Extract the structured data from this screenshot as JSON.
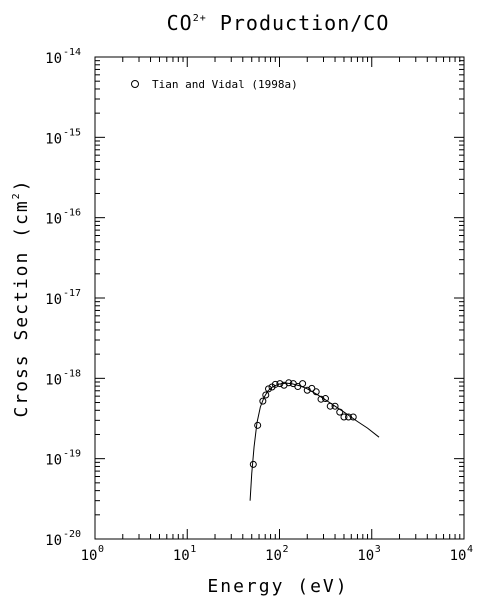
{
  "chart_data": {
    "type": "scatter",
    "title": {
      "base": "CO",
      "sup": "2+",
      "rest": " Production/CO"
    },
    "xlabel": "Energy (eV)",
    "ylabel": {
      "base": "Cross Section (cm",
      "sup": "2",
      "rest": ")"
    },
    "xscale": "log",
    "yscale": "log",
    "xlim": [
      1,
      10000
    ],
    "ylim": [
      1e-20,
      1e-14
    ],
    "x_ticks": [
      {
        "base": "10",
        "exp": "0",
        "value": 1
      },
      {
        "base": "10",
        "exp": "1",
        "value": 10
      },
      {
        "base": "10",
        "exp": "2",
        "value": 100
      },
      {
        "base": "10",
        "exp": "3",
        "value": 1000
      },
      {
        "base": "10",
        "exp": "4",
        "value": 10000
      }
    ],
    "y_ticks": [
      {
        "base": "10",
        "exp": "-20",
        "value": 1e-20
      },
      {
        "base": "10",
        "exp": "-19",
        "value": 1e-19
      },
      {
        "base": "10",
        "exp": "-18",
        "value": 1e-18
      },
      {
        "base": "10",
        "exp": "-17",
        "value": 1e-17
      },
      {
        "base": "10",
        "exp": "-16",
        "value": 1e-16
      },
      {
        "base": "10",
        "exp": "-15",
        "value": 1e-15
      },
      {
        "base": "10",
        "exp": "-14",
        "value": 1e-14
      }
    ],
    "legend": {
      "position": "top-left",
      "entries": [
        {
          "label": "Tian and Vidal (1998a)",
          "marker": "circle"
        }
      ]
    },
    "series": [
      {
        "name": "Tian and Vidal (1998a)",
        "kind": "points",
        "marker": "open-circle",
        "x": [
          52,
          58,
          66,
          71,
          76,
          83,
          90,
          101,
          112,
          126,
          141,
          158,
          178,
          200,
          224,
          250,
          282,
          315,
          355,
          400,
          450,
          500,
          560,
          630
        ],
        "y": [
          8.5e-20,
          2.6e-19,
          5.2e-19,
          6.2e-19,
          7.4e-19,
          7.8e-19,
          8.4e-19,
          8.6e-19,
          8.2e-19,
          8.8e-19,
          8.6e-19,
          7.9e-19,
          8.6e-19,
          7.1e-19,
          7.5e-19,
          6.8e-19,
          5.5e-19,
          5.6e-19,
          4.5e-19,
          4.5e-19,
          3.8e-19,
          3.3e-19,
          3.3e-19,
          3.3e-19
        ]
      },
      {
        "name": "",
        "kind": "line",
        "x": [
          48,
          50,
          53,
          57,
          62,
          68,
          75,
          85,
          100,
          120,
          140,
          170,
          200,
          250,
          300,
          400,
          500,
          700,
          900,
          1200
        ],
        "y": [
          3e-20,
          6.5e-20,
          1.4e-19,
          2.8e-19,
          4.4e-19,
          5.8e-19,
          7e-19,
          7.9e-19,
          8.5e-19,
          8.7e-19,
          8.5e-19,
          8e-19,
          7.4e-19,
          6.4e-19,
          5.6e-19,
          4.5e-19,
          3.8e-19,
          2.9e-19,
          2.4e-19,
          1.85e-19
        ]
      }
    ],
    "grid": false,
    "minor_ticks": true
  }
}
